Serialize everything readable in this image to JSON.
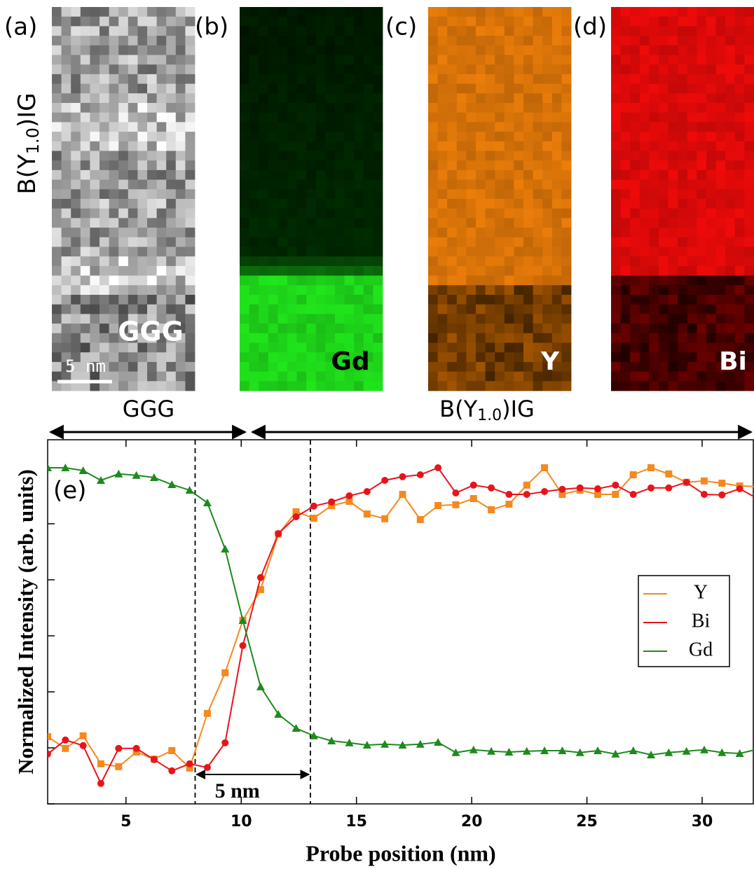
{
  "panels": [
    {
      "label": "(a)",
      "tag": "GGG",
      "scalebar": "5 nm"
    },
    {
      "label": "(b)",
      "tag": "Gd"
    },
    {
      "label": "(c)",
      "tag": "Y"
    },
    {
      "label": "(d)",
      "tag": "Bi"
    }
  ],
  "film_label": {
    "main": "B(Y",
    "sub": "1.0",
    "tail": ")IG"
  },
  "regions": {
    "substrate": "GGG",
    "film": {
      "main": "B(Y",
      "sub": "1.0",
      "tail": ")IG"
    }
  },
  "chart_data": {
    "type": "line",
    "panel_label": "(e)",
    "xlabel": "Probe position (nm)",
    "ylabel": "Normalized Intensity (arb. units)",
    "x": [
      1.6,
      2.37,
      3.14,
      3.91,
      4.68,
      5.45,
      6.22,
      6.99,
      7.76,
      8.53,
      9.3,
      10.07,
      10.84,
      11.61,
      12.38,
      13.15,
      13.92,
      14.69,
      15.46,
      16.23,
      17.0,
      17.77,
      18.54,
      19.31,
      20.08,
      20.85,
      21.62,
      22.39,
      23.16,
      23.93,
      24.7,
      25.47,
      26.24,
      27.01,
      27.78,
      28.55,
      29.32,
      30.09,
      30.86,
      31.63,
      32.4
    ],
    "series": [
      {
        "name": "Y",
        "color": "#f5891f",
        "marker": "square",
        "values": [
          0.24,
          0.198,
          0.243,
          0.143,
          0.133,
          0.185,
          0.16,
          0.19,
          0.128,
          0.323,
          0.468,
          0.655,
          0.765,
          0.963,
          1.043,
          1.02,
          1.065,
          1.08,
          1.035,
          1.018,
          1.105,
          1.015,
          1.065,
          1.068,
          1.09,
          1.05,
          1.07,
          1.138,
          1.2,
          1.105,
          1.12,
          1.105,
          1.105,
          1.175,
          1.2,
          1.178,
          1.148,
          1.153,
          1.145,
          1.135,
          1.133
        ]
      },
      {
        "name": "Bi",
        "color": "#e8141c",
        "marker": "circle",
        "values": [
          0.178,
          0.228,
          0.208,
          0.073,
          0.198,
          0.198,
          0.158,
          0.118,
          0.143,
          0.13,
          0.218,
          0.565,
          0.808,
          0.965,
          1.025,
          1.063,
          1.078,
          1.1,
          1.115,
          1.155,
          1.168,
          1.175,
          1.2,
          1.11,
          1.138,
          1.128,
          1.105,
          1.105,
          1.115,
          1.123,
          1.128,
          1.125,
          1.138,
          1.105,
          1.128,
          1.128,
          1.148,
          1.105,
          1.103,
          1.125,
          1.09
        ]
      },
      {
        "name": "Gd",
        "color": "#1d8a1d",
        "marker": "triangle",
        "values": [
          1.2,
          1.2,
          1.19,
          1.155,
          1.178,
          1.173,
          1.165,
          1.14,
          1.12,
          1.075,
          0.91,
          0.655,
          0.418,
          0.32,
          0.27,
          0.243,
          0.225,
          0.218,
          0.21,
          0.213,
          0.21,
          0.213,
          0.22,
          0.183,
          0.193,
          0.188,
          0.185,
          0.188,
          0.19,
          0.19,
          0.183,
          0.19,
          0.178,
          0.19,
          0.175,
          0.183,
          0.188,
          0.193,
          0.183,
          0.18,
          0.195
        ]
      }
    ],
    "xlim": [
      1.6,
      32.25
    ],
    "ylim": [
      0,
      1.3
    ],
    "xticks": [
      5,
      10,
      15,
      20,
      25,
      30
    ],
    "yticks": [
      0,
      0.2,
      0.4,
      0.6,
      0.8,
      1.0,
      1.2
    ],
    "vlines": [
      8,
      13
    ],
    "annotation": "5 nm",
    "legend": "right"
  }
}
